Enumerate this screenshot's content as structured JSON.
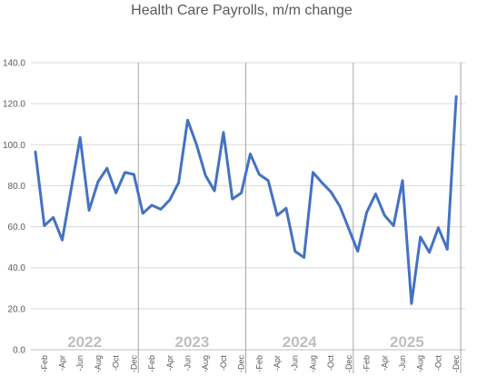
{
  "chart_data": {
    "type": "line",
    "title": "Health Care Payrolls, m/m change",
    "xlabel": "",
    "ylabel": "",
    "ylim": [
      0,
      140
    ],
    "yticks": [
      "0.0",
      "20.0",
      "40.0",
      "60.0",
      "80.0",
      "100.0",
      "120.0",
      "140.0"
    ],
    "grid": true,
    "legend": "none",
    "years": [
      "2022",
      "2023",
      "2024",
      "2025"
    ],
    "x": [
      "2022-Jan",
      "2022-Feb",
      "2022-Mar",
      "2022-Apr",
      "2022-May",
      "2022-Jun",
      "2022-Jul",
      "2022-Aug",
      "2022-Sep",
      "2022-Oct",
      "2022-Nov",
      "2022-Dec",
      "2023-Jan",
      "2023-Feb",
      "2023-Mar",
      "2023-Apr",
      "2023-May",
      "2023-Jun",
      "2023-Jul",
      "2023-Aug",
      "2023-Sep",
      "2023-Oct",
      "2023-Nov",
      "2023-Dec",
      "2024-Jan",
      "2024-Feb",
      "2024-Mar",
      "2024-Apr",
      "2024-May",
      "2024-Jun",
      "2024-Jul",
      "2024-Aug",
      "2024-Sep",
      "2024-Oct",
      "2024-Nov",
      "2024-Dec",
      "2025-Jan",
      "2025-Feb",
      "2025-Mar",
      "2025-Apr",
      "2025-May",
      "2025-Jun",
      "2025-Jul",
      "2025-Aug",
      "2025-Sep",
      "2025-Oct",
      "2025-Nov",
      "2025-Dec",
      "2026-Jan"
    ],
    "x_tick_labels": [
      "-Feb",
      "-Apr",
      "-Jun",
      "-Aug",
      "-Oct",
      "-Dec",
      "-Feb",
      "-Apr",
      "-Jun",
      "-Aug",
      "-Oct",
      "-Dec",
      "-Feb",
      "-Apr",
      "-Jun",
      "-Aug",
      "-Oct",
      "-Dec",
      "-Feb",
      "-Apr",
      "-Jun",
      "-Aug",
      "-Oct",
      "-Dec"
    ],
    "series": [
      {
        "color": "#4472c4",
        "values": [
          96.5,
          60.5,
          64.5,
          53.5,
          78.5,
          103.5,
          68.0,
          82.0,
          88.5,
          76.5,
          86.5,
          85.5,
          66.5,
          70.5,
          68.5,
          73.0,
          81.5,
          112.0,
          100.0,
          85.0,
          77.5,
          106.0,
          73.5,
          76.5,
          95.5,
          85.5,
          82.5,
          65.5,
          69.0,
          48.0,
          45.0,
          86.5,
          81.5,
          77.0,
          70.0,
          59.0,
          48.0,
          67.0,
          76.0,
          65.5,
          60.5,
          82.5,
          22.5,
          55.0,
          47.5,
          59.5,
          49.0,
          123.5,
          null
        ]
      }
    ]
  }
}
